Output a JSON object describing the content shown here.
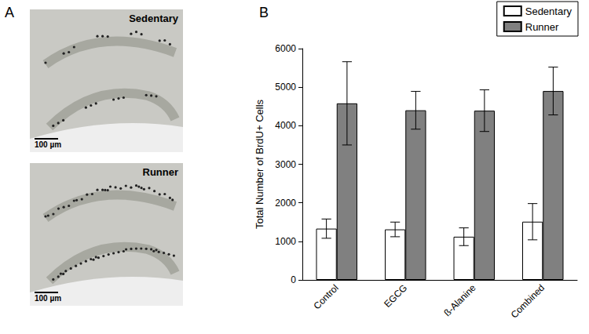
{
  "panel_labels": [
    "A",
    "B"
  ],
  "micrographs": [
    {
      "label": "Sedentary",
      "scale_bar": "100 µm"
    },
    {
      "label": "Runner",
      "scale_bar": "100 µm"
    }
  ],
  "chart_data": {
    "type": "bar",
    "y_label": "Total Number of BrdU+ Cells",
    "categories": [
      "Control",
      "EGCG",
      "ß-Alanine",
      "Combined"
    ],
    "series": [
      {
        "name": "Sedentary",
        "color": "#ffffff",
        "values": [
          1330,
          1310,
          1120,
          1510
        ],
        "errors": [
          250,
          190,
          230,
          470
        ]
      },
      {
        "name": "Runner",
        "color": "#808080",
        "values": [
          4580,
          4400,
          4390,
          4900
        ],
        "errors": [
          1080,
          490,
          540,
          620
        ]
      }
    ],
    "ylim": [
      0,
      6000
    ],
    "yticks": [
      0,
      1000,
      2000,
      3000,
      4000,
      5000,
      6000
    ],
    "grid": false,
    "legend": "upper right"
  }
}
